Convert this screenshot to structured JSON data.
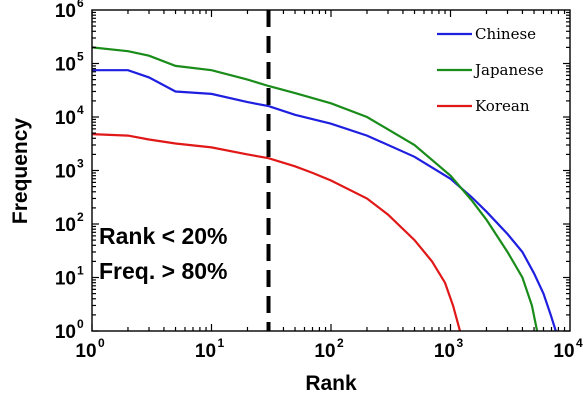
{
  "chart_data": {
    "type": "line",
    "xlabel": "Rank",
    "ylabel": "Frequency",
    "xscale": "log",
    "yscale": "log",
    "xlim": [
      1,
      10000
    ],
    "ylim": [
      1,
      1000000
    ],
    "x_ticks": [
      {
        "base": "10",
        "exp": "0",
        "value": 1
      },
      {
        "base": "10",
        "exp": "1",
        "value": 10
      },
      {
        "base": "10",
        "exp": "2",
        "value": 100
      },
      {
        "base": "10",
        "exp": "3",
        "value": 1000
      },
      {
        "base": "10",
        "exp": "4",
        "value": 10000
      }
    ],
    "y_ticks": [
      {
        "base": "10",
        "exp": "0",
        "value": 1
      },
      {
        "base": "10",
        "exp": "1",
        "value": 10
      },
      {
        "base": "10",
        "exp": "2",
        "value": 100
      },
      {
        "base": "10",
        "exp": "3",
        "value": 1000
      },
      {
        "base": "10",
        "exp": "4",
        "value": 10000
      },
      {
        "base": "10",
        "exp": "5",
        "value": 100000
      },
      {
        "base": "10",
        "exp": "6",
        "value": 1000000
      }
    ],
    "legend": {
      "position": "top-right"
    },
    "grid": false,
    "series": [
      {
        "name": "Chinese",
        "color": "#1f1fe0",
        "points": [
          [
            1,
            75000
          ],
          [
            2,
            75000
          ],
          [
            3,
            55000
          ],
          [
            5,
            30000
          ],
          [
            10,
            27000
          ],
          [
            20,
            19000
          ],
          [
            30,
            16000
          ],
          [
            50,
            11000
          ],
          [
            100,
            7500
          ],
          [
            200,
            4500
          ],
          [
            500,
            1800
          ],
          [
            1000,
            700
          ],
          [
            1500,
            320
          ],
          [
            2000,
            170
          ],
          [
            3000,
            65
          ],
          [
            4000,
            30
          ],
          [
            5000,
            12
          ],
          [
            6000,
            5
          ],
          [
            6900,
            2
          ],
          [
            7600,
            1
          ]
        ]
      },
      {
        "name": "Japanese",
        "color": "#1a8c1a",
        "points": [
          [
            1,
            200000
          ],
          [
            2,
            170000
          ],
          [
            3,
            140000
          ],
          [
            5,
            90000
          ],
          [
            10,
            75000
          ],
          [
            20,
            50000
          ],
          [
            30,
            38000
          ],
          [
            50,
            28000
          ],
          [
            100,
            18000
          ],
          [
            200,
            10000
          ],
          [
            500,
            3000
          ],
          [
            1000,
            800
          ],
          [
            1500,
            280
          ],
          [
            2000,
            120
          ],
          [
            3000,
            30
          ],
          [
            4000,
            10
          ],
          [
            4800,
            3
          ],
          [
            5300,
            1
          ]
        ]
      },
      {
        "name": "Korean",
        "color": "#e01818",
        "points": [
          [
            1,
            4800
          ],
          [
            2,
            4500
          ],
          [
            3,
            3800
          ],
          [
            5,
            3200
          ],
          [
            10,
            2700
          ],
          [
            20,
            2000
          ],
          [
            30,
            1700
          ],
          [
            50,
            1200
          ],
          [
            70,
            900
          ],
          [
            100,
            650
          ],
          [
            200,
            300
          ],
          [
            300,
            150
          ],
          [
            500,
            50
          ],
          [
            700,
            20
          ],
          [
            900,
            8
          ],
          [
            1050,
            3
          ],
          [
            1200,
            1
          ]
        ]
      }
    ],
    "reference_line": {
      "x": 30,
      "style": "dashed",
      "color": "#000000"
    },
    "annotations": [
      "Rank < 20%",
      "Freq. > 80%"
    ]
  }
}
